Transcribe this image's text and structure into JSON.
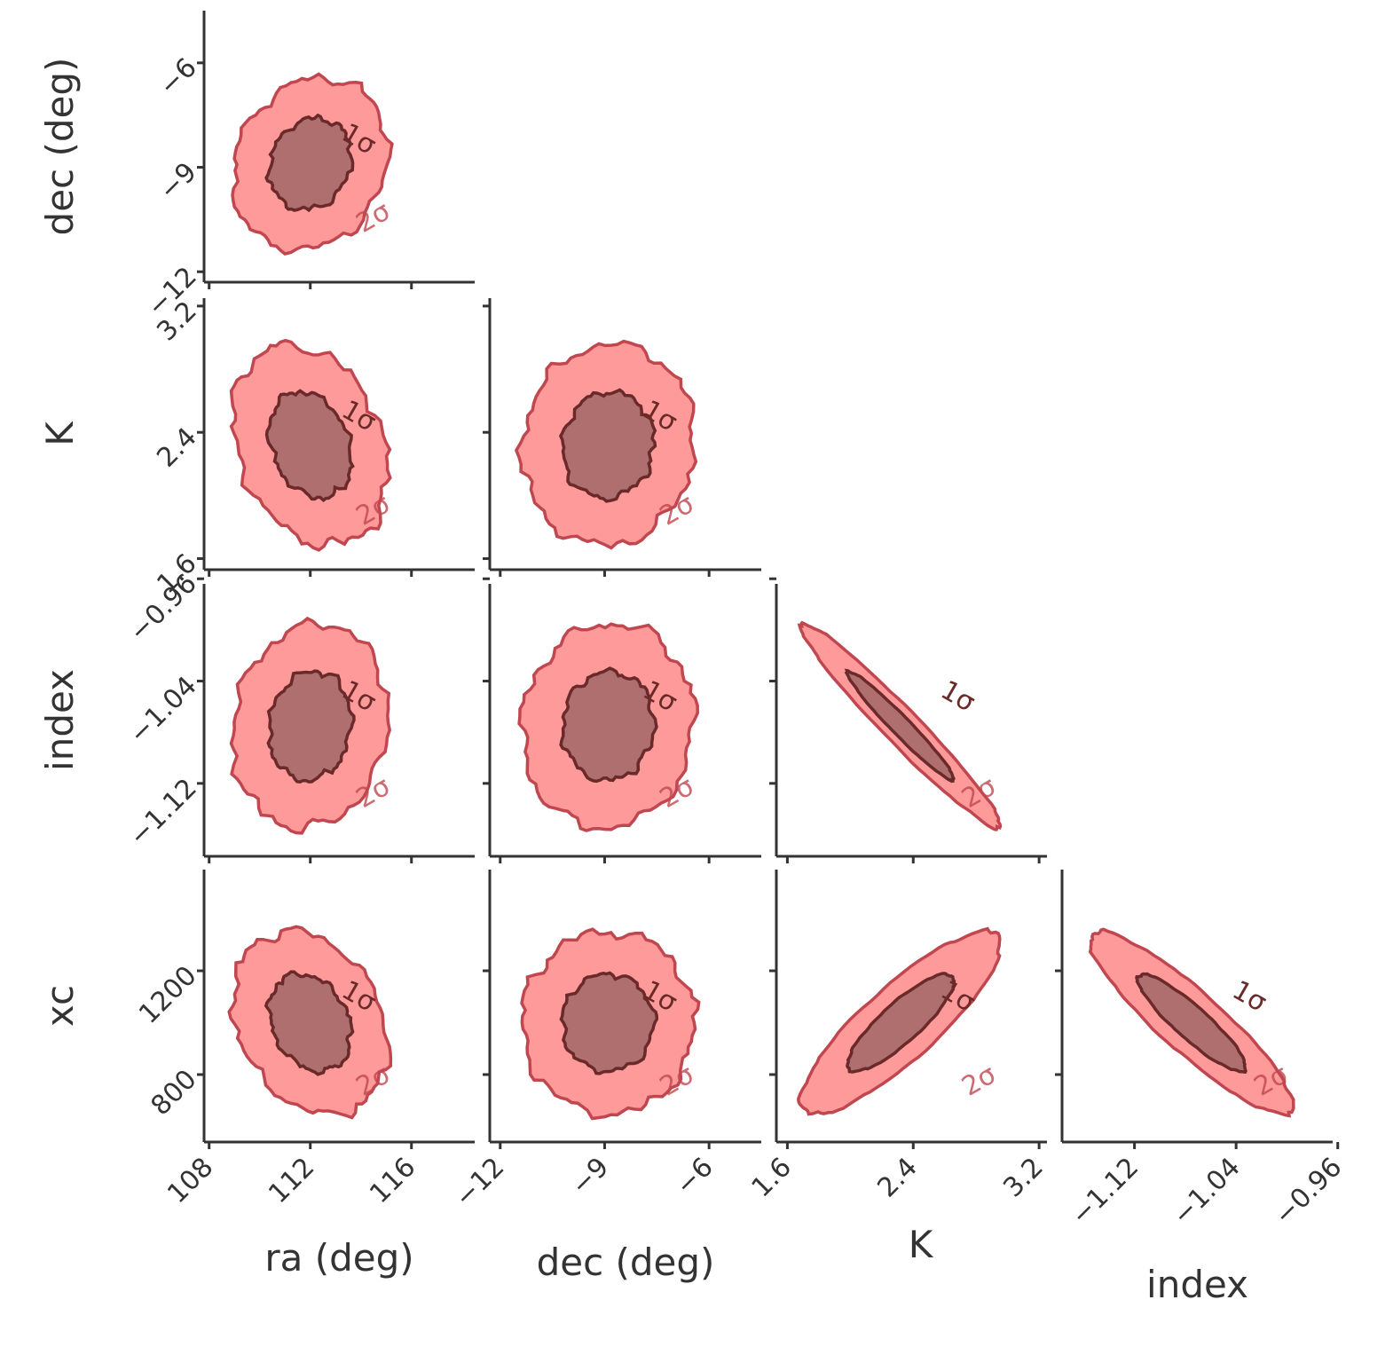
{
  "chart_data": {
    "type": "contour",
    "plot_kind": "corner",
    "contour_levels": [
      "1σ",
      "2σ"
    ],
    "colors": {
      "outer_fill": "#ff9a9a",
      "outer_edge": "#c0474f",
      "inner_fill": "#b06f6f",
      "inner_edge": "#6a2a2a",
      "axis": "#333333"
    },
    "parameters": [
      {
        "name": "ra",
        "label": "ra (deg)",
        "range": [
          107.8,
          118.5
        ],
        "ticks": [
          108,
          112,
          116
        ],
        "tick_labels": [
          "108",
          "112",
          "116"
        ],
        "mean": 112.0,
        "sigma": 1.3
      },
      {
        "name": "dec",
        "label": "dec (deg)",
        "range": [
          -12.3,
          -4.5
        ],
        "ticks": [
          -12,
          -9,
          -6
        ],
        "tick_labels": [
          "−12",
          "−9",
          "−6"
        ],
        "mean": -8.9,
        "sigma": 1.05
      },
      {
        "name": "K",
        "label": "K",
        "range": [
          1.53,
          3.25
        ],
        "ticks": [
          1.6,
          2.4,
          3.2
        ],
        "tick_labels": [
          "1.6",
          "2.4",
          "3.2"
        ],
        "mean": 2.32,
        "sigma": 0.27
      },
      {
        "name": "index",
        "label": "index",
        "range": [
          -1.177,
          -0.964
        ],
        "ticks": [
          -1.12,
          -1.04,
          -0.96
        ],
        "tick_labels": [
          "−1.12",
          "−1.04",
          "−0.96"
        ],
        "mean": -1.075,
        "sigma": 0.034
      },
      {
        "name": "xc",
        "label": "xc",
        "ticks": [
          800,
          1200
        ],
        "tick_labels": [
          "800",
          "1200"
        ],
        "range": [
          540,
          1590
        ],
        "mean": 1000,
        "sigma": 150
      }
    ],
    "panels": [
      {
        "x": "ra",
        "y": "dec",
        "correlation": 0.15
      },
      {
        "x": "ra",
        "y": "K",
        "correlation": -0.25
      },
      {
        "x": "dec",
        "y": "K",
        "correlation": 0.05
      },
      {
        "x": "ra",
        "y": "index",
        "correlation": 0.1
      },
      {
        "x": "dec",
        "y": "index",
        "correlation": 0.05
      },
      {
        "x": "K",
        "y": "index",
        "correlation": -0.97
      },
      {
        "x": "ra",
        "y": "xc",
        "correlation": -0.25
      },
      {
        "x": "dec",
        "y": "xc",
        "correlation": 0.0
      },
      {
        "x": "K",
        "y": "xc",
        "correlation": 0.85
      },
      {
        "x": "index",
        "y": "xc",
        "correlation": -0.9
      }
    ]
  }
}
